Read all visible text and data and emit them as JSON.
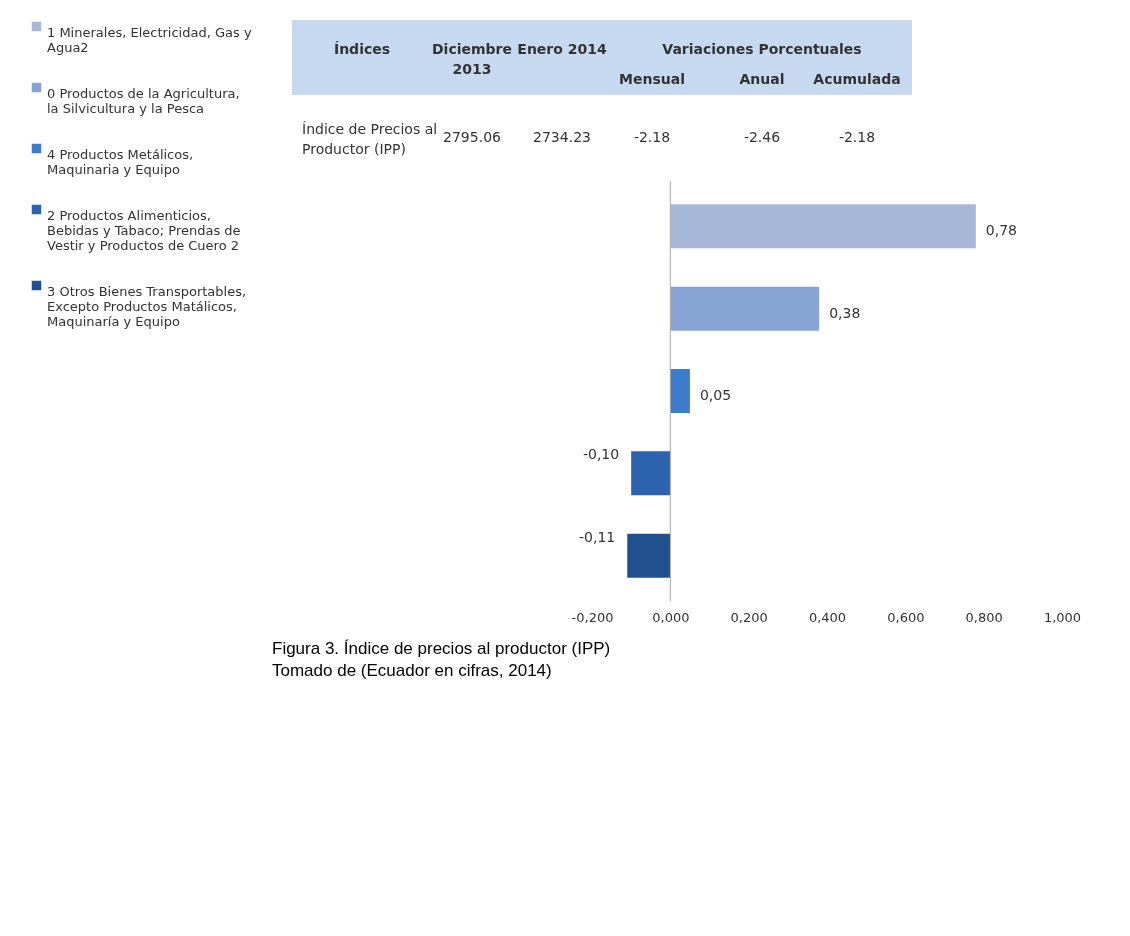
{
  "chart_data": [
    {
      "type": "other",
      "annotations": [
        "Índices",
        "Diciembre 2013",
        "Enero 2014",
        "Variaciones Porcentuales",
        "Mensual",
        "Anual",
        "Acumulada",
        "Índice de Precios al Productor (IPP)",
        "2795.06",
        "2734.23",
        "-2.18",
        "-2.46",
        "-2.18"
      ]
    },
    {
      "type": "bar",
      "orientation": "horizontal",
      "categories": [
        null,
        null,
        null,
        null,
        null
      ],
      "series": [
        {
          "name": "1 Minerales, Electricidad, Gas y Agua2",
          "color": "#a8b8d8",
          "values": [
            0.78,
            null,
            null,
            null,
            null
          ],
          "value_labels": [
            "0,78",
            null,
            null,
            null,
            null
          ]
        },
        {
          "name": "0  Productos de la Agricultura, la Silvicultura y la Pesca",
          "color": "#88a4d4",
          "values": [
            null,
            0.38,
            null,
            null,
            null
          ],
          "value_labels": [
            null,
            "0,38",
            null,
            null,
            null
          ]
        },
        {
          "name": "4  Productos Metálicos, Maquinaria y Equipo",
          "color": "#3d7bcc",
          "values": [
            null,
            null,
            0.05,
            null,
            null
          ],
          "value_labels": [
            null,
            null,
            "0,05",
            null,
            null
          ]
        },
        {
          "name": "2  Productos Alimenticios, Bebidas y Tabaco; Prendas de Vestir y Productos de Cuero 2",
          "color": "#2c62ae",
          "values": [
            null,
            null,
            null,
            -0.1,
            null
          ],
          "value_labels": [
            null,
            null,
            null,
            "-0,10",
            null
          ]
        },
        {
          "name": "3  Otros Bienes Transportables, Excepto Productos Matálicos, Maquinaría y Equipo",
          "color": "#21508f",
          "values": [
            null,
            null,
            null,
            null,
            -0.11
          ],
          "value_labels": [
            null,
            null,
            null,
            null,
            "-0,11"
          ]
        }
      ],
      "xlim": [
        -0.2,
        1.0
      ],
      "xticks": [
        {
          "value": -0.2,
          "label": "-0,200"
        },
        {
          "value": 0,
          "label": "0,000"
        },
        {
          "value": 0.2,
          "label": "0,200"
        },
        {
          "value": 0.4,
          "label": "0,400"
        },
        {
          "value": 0.6,
          "label": "0,600"
        },
        {
          "value": 0.8,
          "label": "0,800"
        },
        {
          "value": 1.0,
          "label": "1,000"
        }
      ],
      "ref_lines": [
        {
          "axis": "x",
          "value": 0,
          "color": "#a6a6a6"
        }
      ],
      "legend": "left",
      "grid": false,
      "annotations": [
        "Figura 3.  Índice de precios al productor (IPP)",
        "Tomado de (Ecuador en cifras, 2014)"
      ]
    }
  ]
}
